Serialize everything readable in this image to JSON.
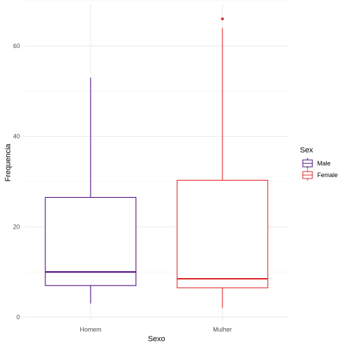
{
  "chart_data": {
    "type": "boxplot",
    "title": "",
    "xlabel": "Sexo",
    "ylabel": "Frequencia",
    "categories": [
      "Homem",
      "Mulher"
    ],
    "ylim": [
      -1,
      67
    ],
    "yticks": [
      0,
      20,
      40,
      60
    ],
    "grid": true,
    "legend": {
      "title": "Sex",
      "position": "right",
      "entries": [
        {
          "label": "Male",
          "color": "#4b0c80"
        },
        {
          "label": "Female",
          "color": "#e0282b"
        }
      ]
    },
    "series": [
      {
        "category": "Homem",
        "legend": "Male",
        "color": "#4b0c80",
        "min": 3,
        "q1": 7,
        "median": 10,
        "q3": 26.5,
        "max": 53,
        "outliers": []
      },
      {
        "category": "Mulher",
        "legend": "Female",
        "color": "#e0282b",
        "min": 2,
        "q1": 6.5,
        "median": 8.5,
        "q3": 30.3,
        "max": 64,
        "outliers": [
          66
        ]
      }
    ]
  }
}
